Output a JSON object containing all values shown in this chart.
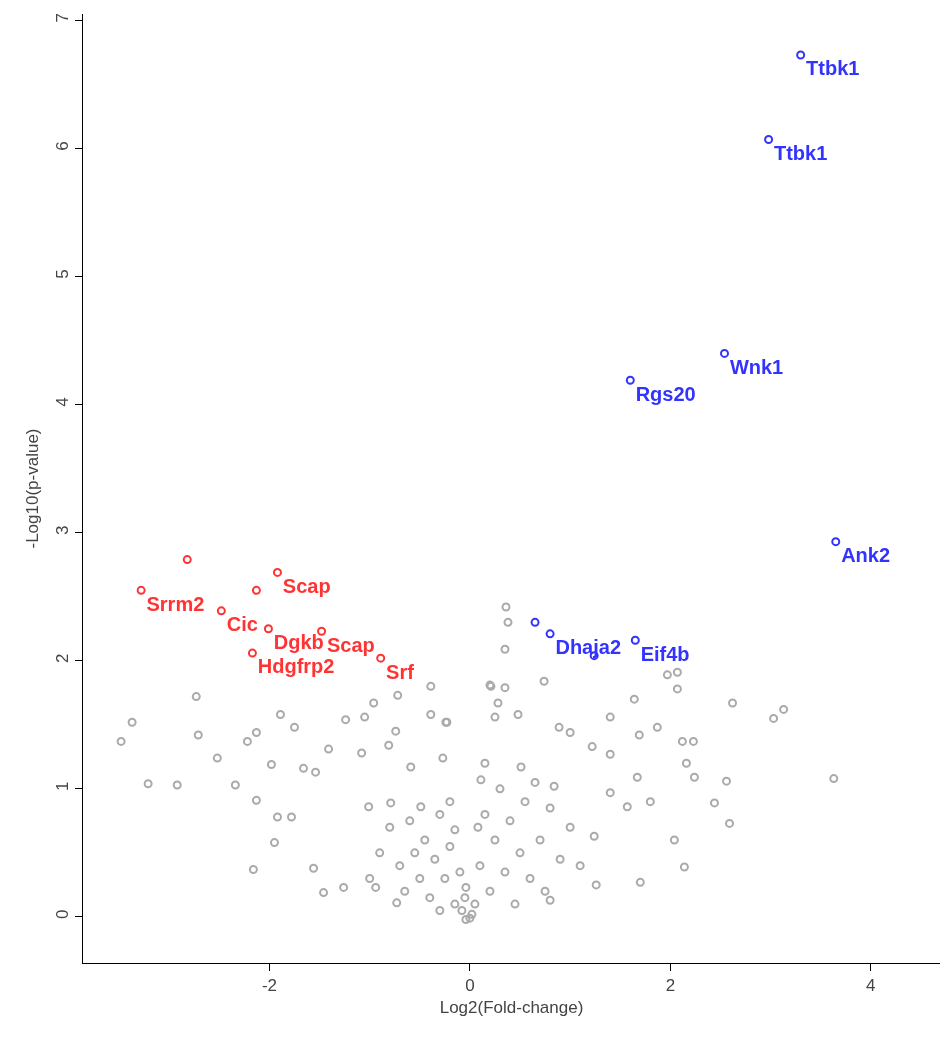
{
  "chart_data": {
    "type": "scatter",
    "xlabel": "Log2(Fold-change)",
    "ylabel": "-Log10(p-value)",
    "xlim": [
      -3.86,
      4.69
    ],
    "ylim": [
      -0.36,
      7.05
    ],
    "xticks": [
      -2,
      0,
      2,
      4
    ],
    "yticks": [
      0,
      1,
      2,
      3,
      4,
      5,
      6,
      7
    ],
    "marker": "circle",
    "series": [
      {
        "color": "#aaaaaa",
        "x": [
          -3.48,
          -3.37,
          -3.21,
          -2.92,
          -2.73,
          -2.71,
          -2.52,
          -2.34,
          -2.22,
          -2.13,
          -2.16,
          -2.13,
          -1.98,
          -1.89,
          -1.92,
          -1.95,
          -1.75,
          -1.66,
          -1.54,
          -1.56,
          -1.46,
          -1.26,
          -1.24,
          -1.05,
          -0.96,
          -0.72,
          -0.39,
          -0.39,
          -0.23,
          0.21,
          -0.74,
          -1.08,
          -0.59,
          -0.81,
          -0.27,
          -1.41,
          -1.78,
          -0.94,
          -0.73,
          -1.01,
          -0.79,
          -0.49,
          -0.04,
          -0.04,
          -0.15,
          0.08,
          0.36,
          0.38,
          0.35,
          0.74,
          0.2,
          0.35,
          1.64,
          1.97,
          2.07,
          2.07,
          2.62,
          3.03,
          3.13,
          3.63,
          1.4,
          1.69,
          1.87,
          2.12,
          2.23,
          2.16,
          2.56,
          2.24,
          2.44,
          2.59,
          2.14,
          1.7,
          2.04,
          1.26,
          0.8,
          1.22,
          1.0,
          0.89,
          1.4,
          -0.24,
          0.48,
          0.25,
          0.28,
          1.67,
          1.8,
          1.57,
          1.4,
          1.24,
          0.84,
          0.51,
          0.11,
          -0.9,
          -0.8,
          -0.7,
          -0.6,
          -0.55,
          -0.5,
          -0.45,
          -0.4,
          -0.35,
          -0.3,
          -0.25,
          -0.2,
          -0.15,
          -0.1,
          -0.08,
          -1.0,
          -0.65,
          -0.3,
          -0.2,
          -0.05,
          0.05,
          0.1,
          0.15,
          0.2,
          0.25,
          0.3,
          0.35,
          0.4,
          0.45,
          0.5,
          0.55,
          0.6,
          0.7,
          0.75,
          0.8,
          0.9,
          1.0,
          1.1,
          0.65,
          0.15,
          0.02,
          0.0
        ],
        "values": [
          1.37,
          1.52,
          1.04,
          1.03,
          1.72,
          1.42,
          1.24,
          1.03,
          1.37,
          1.44,
          0.37,
          0.91,
          1.19,
          1.58,
          0.78,
          0.58,
          1.48,
          1.16,
          1.13,
          0.38,
          0.19,
          0.23,
          1.54,
          1.56,
          1.67,
          1.73,
          1.8,
          1.58,
          1.52,
          1.8,
          1.45,
          1.28,
          1.17,
          1.34,
          1.24,
          1.31,
          0.78,
          0.23,
          0.11,
          0.86,
          0.89,
          0.86,
          0.23,
          -0.02,
          0.68,
          0.7,
          2.42,
          2.3,
          2.09,
          1.84,
          1.81,
          1.79,
          1.7,
          1.89,
          1.91,
          1.78,
          1.67,
          1.55,
          1.62,
          1.08,
          1.56,
          1.42,
          1.48,
          1.37,
          1.37,
          1.2,
          1.06,
          1.09,
          0.89,
          0.73,
          0.39,
          0.27,
          0.6,
          0.25,
          0.13,
          1.33,
          1.44,
          1.48,
          1.27,
          1.52,
          1.58,
          1.56,
          1.67,
          1.09,
          0.9,
          0.86,
          0.97,
          0.63,
          1.02,
          1.17,
          1.07,
          0.5,
          0.7,
          0.4,
          0.75,
          0.5,
          0.3,
          0.6,
          0.15,
          0.45,
          0.8,
          0.3,
          0.55,
          0.1,
          0.35,
          0.05,
          0.3,
          0.2,
          0.05,
          0.9,
          0.15,
          0.1,
          0.4,
          0.8,
          0.2,
          0.6,
          1.0,
          0.35,
          0.75,
          0.1,
          0.5,
          0.9,
          0.3,
          0.6,
          0.2,
          0.85,
          0.45,
          0.7,
          0.4,
          1.05,
          1.2,
          0.02,
          -0.01
        ]
      },
      {
        "color": "#ff3333",
        "x": [
          -2.82,
          -3.28,
          -1.92,
          -2.13,
          -2.48,
          -2.01,
          -2.17,
          -1.48,
          -0.89
        ],
        "values": [
          2.79,
          2.55,
          2.69,
          2.55,
          2.39,
          2.25,
          2.06,
          2.23,
          2.02
        ],
        "value_labels": [
          null,
          "Srrm2",
          "Scap",
          null,
          "Cic",
          "Dgkb",
          "Hdgfrp2",
          "Scap",
          "Srf"
        ]
      },
      {
        "color": "#3333ff",
        "x": [
          0.65,
          0.8,
          1.24,
          1.65,
          1.6,
          2.54,
          3.3,
          2.98,
          3.65
        ],
        "values": [
          2.3,
          2.21,
          2.04,
          2.16,
          4.19,
          4.4,
          6.73,
          6.07,
          2.93
        ],
        "value_labels": [
          null,
          "Dhaja2",
          null,
          "Eif4b",
          "Rgs20",
          "Wnk1",
          "Ttbk1",
          "Ttbk1",
          "Ank2"
        ]
      }
    ]
  }
}
